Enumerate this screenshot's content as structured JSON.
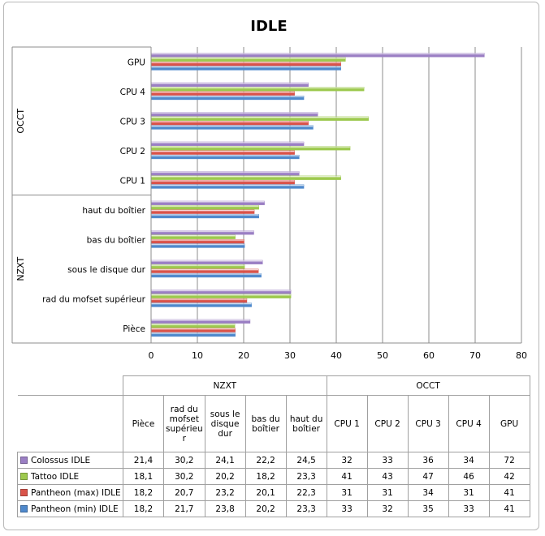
{
  "chart_data": {
    "type": "bar",
    "orientation": "horizontal",
    "title": "IDLE",
    "xlim": [
      0,
      80
    ],
    "xticks": [
      0,
      10,
      20,
      30,
      40,
      50,
      60,
      70,
      80
    ],
    "grid": true,
    "groups": [
      {
        "name": "OCCT",
        "categories": [
          "CPU 1",
          "CPU 2",
          "CPU 3",
          "CPU 4",
          "GPU"
        ]
      },
      {
        "name": "NZXT",
        "categories": [
          "Pièce",
          "rad du mofset supérieur",
          "sous le disque dur",
          "bas du boîtier",
          "haut du boîtier"
        ]
      }
    ],
    "categories": [
      "Pièce",
      "rad du mofset supérieur",
      "sous le disque dur",
      "bas du boîtier",
      "haut du boîtier",
      "CPU 1",
      "CPU 2",
      "CPU 3",
      "CPU 4",
      "GPU"
    ],
    "series": [
      {
        "name": "Colossus IDLE",
        "color": "#9b7fc4",
        "values": [
          21.4,
          30.2,
          24.1,
          22.2,
          24.5,
          32,
          33,
          36,
          34,
          72
        ],
        "labels": [
          "21,4",
          "30,2",
          "24,1",
          "22,2",
          "24,5",
          "32",
          "33",
          "36",
          "34",
          "72"
        ]
      },
      {
        "name": "Tattoo IDLE",
        "color": "#9dc94e",
        "values": [
          18.1,
          30.2,
          20.2,
          18.2,
          23.3,
          41,
          43,
          47,
          46,
          42
        ],
        "labels": [
          "18,1",
          "30,2",
          "20,2",
          "18,2",
          "23,3",
          "41",
          "43",
          "47",
          "46",
          "42"
        ]
      },
      {
        "name": "Pantheon (max) IDLE",
        "color": "#d9534a",
        "values": [
          18.2,
          20.7,
          23.2,
          20.1,
          22.3,
          31,
          31,
          34,
          31,
          41
        ],
        "labels": [
          "18,2",
          "20,7",
          "23,2",
          "20,1",
          "22,3",
          "31",
          "31",
          "34",
          "31",
          "41"
        ]
      },
      {
        "name": "Pantheon (min) IDLE",
        "color": "#4f89cc",
        "values": [
          18.2,
          21.7,
          23.8,
          20.2,
          23.3,
          33,
          32,
          35,
          33,
          41
        ],
        "labels": [
          "18,2",
          "21,7",
          "23,8",
          "20,2",
          "23,3",
          "33",
          "32",
          "35",
          "33",
          "41"
        ]
      }
    ],
    "table": {
      "group_headers": [
        "NZXT",
        "OCCT"
      ],
      "column_headers": [
        "Pièce",
        "rad du mofset supérieu r",
        "sous le disque dur",
        "bas du boîtier",
        "haut du boîtier",
        "CPU 1",
        "CPU 2",
        "CPU 3",
        "CPU 4",
        "GPU"
      ]
    }
  }
}
